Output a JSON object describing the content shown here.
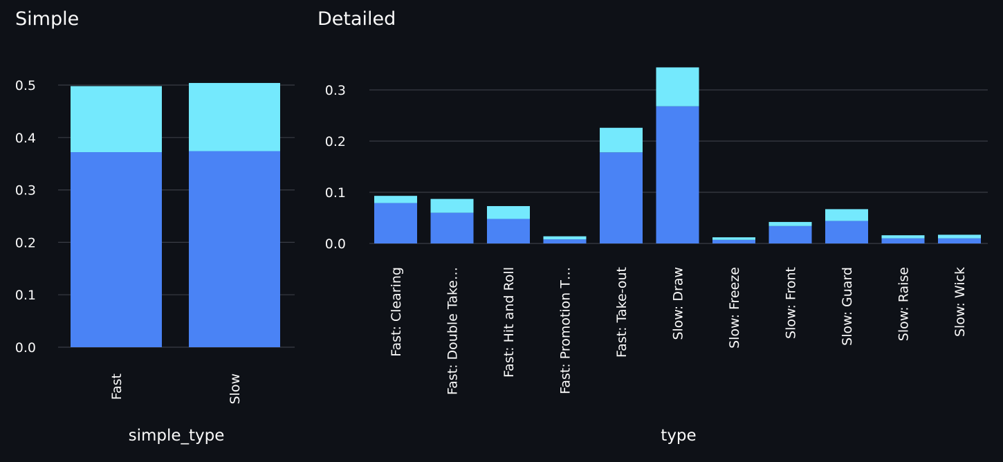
{
  "panels": {
    "simple_title": "Simple",
    "detailed_title": "Detailed"
  },
  "colors": {
    "background": "#0e1117",
    "grid": "#3a3d45",
    "series_dark": "#4a83f5",
    "series_light": "#74e9fd",
    "text": "#fafafa"
  },
  "chart_data": [
    {
      "type": "bar",
      "stacked": true,
      "title": "Simple",
      "xlabel": "simple_type",
      "ylabel": "",
      "ylim": [
        0,
        0.5
      ],
      "yticks": [
        "0.0",
        "0.1",
        "0.2",
        "0.3",
        "0.4",
        "0.5"
      ],
      "categories": [
        "Fast",
        "Slow"
      ],
      "series": [
        {
          "values": [
            0.372,
            0.374
          ]
        },
        {
          "values": [
            0.126,
            0.13
          ]
        }
      ],
      "grid": true
    },
    {
      "type": "bar",
      "stacked": true,
      "title": "Detailed",
      "xlabel": "type",
      "ylabel": "",
      "ylim": [
        0,
        0.3
      ],
      "yticks": [
        "0.0",
        "0.1",
        "0.2",
        "0.3"
      ],
      "categories": [
        "Fast: Clearing",
        "Fast: Double Take…",
        "Fast: Hit and Roll",
        "Fast: Promotion T…",
        "Fast: Take-out",
        "Slow: Draw",
        "Slow: Freeze",
        "Slow: Front",
        "Slow: Guard",
        "Slow: Raise",
        "Slow: Wick"
      ],
      "series": [
        {
          "values": [
            0.079,
            0.06,
            0.048,
            0.008,
            0.178,
            0.268,
            0.007,
            0.034,
            0.044,
            0.01,
            0.01
          ]
        },
        {
          "values": [
            0.014,
            0.027,
            0.025,
            0.006,
            0.048,
            0.076,
            0.005,
            0.008,
            0.023,
            0.006,
            0.007
          ]
        }
      ],
      "grid": true
    }
  ]
}
